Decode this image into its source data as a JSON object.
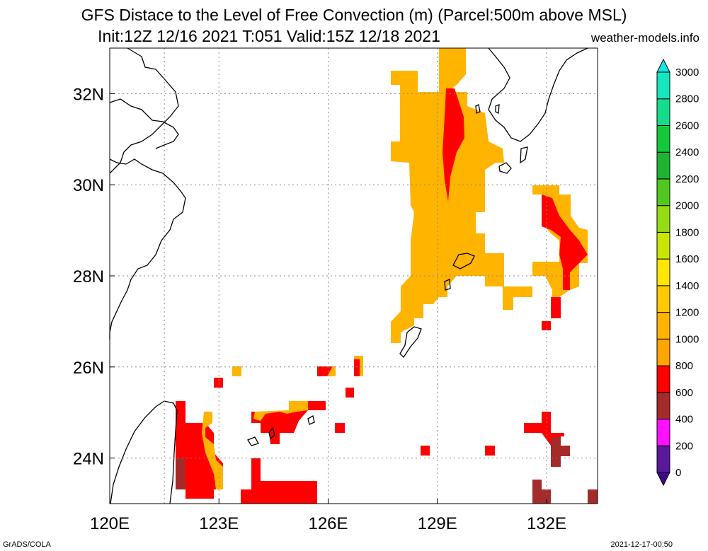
{
  "title": {
    "line1": "GFS Distace to the Level of Free Convection (m) (Parcel:500m above MSL)",
    "line2": "Init:12Z 12/16 2021 T:051 Valid:15Z 12/18 2021",
    "site": "weather-models.info"
  },
  "footer": {
    "left": "GrADS/COLA",
    "right": "2021-12-17-00:50"
  },
  "map": {
    "lon_range": [
      120,
      133.4
    ],
    "lat_range": [
      23,
      33
    ],
    "lon_ticks": [
      {
        "v": 120,
        "label": "120E"
      },
      {
        "v": 123,
        "label": "123E"
      },
      {
        "v": 126,
        "label": "126E"
      },
      {
        "v": 129,
        "label": "129E"
      },
      {
        "v": 132,
        "label": "132E"
      }
    ],
    "lat_ticks": [
      {
        "v": 24,
        "label": "24N"
      },
      {
        "v": 26,
        "label": "26N"
      },
      {
        "v": 28,
        "label": "28N"
      },
      {
        "v": 30,
        "label": "30N"
      },
      {
        "v": 32,
        "label": "32N"
      }
    ],
    "grid_lons": [
      121.5,
      123,
      126,
      129,
      132
    ],
    "grid_lats": [
      24,
      26,
      28,
      30,
      32
    ]
  },
  "colorbar": {
    "levels": [
      0,
      200,
      400,
      600,
      800,
      1000,
      1200,
      1400,
      1600,
      1800,
      2000,
      2200,
      2400,
      2600,
      2800,
      3000
    ],
    "labels": [
      "0",
      "200",
      "400",
      "600",
      "800",
      "1000",
      "1200",
      "1400",
      "1600",
      "1800",
      "2000",
      "2200",
      "2400",
      "2600",
      "2800",
      "3000"
    ],
    "colors": [
      "#5a189a",
      "#ff10ff",
      "#a52a2a",
      "#ff0000",
      "#ffa500",
      "#ffb400",
      "#ffc800",
      "#ffe600",
      "#c8e600",
      "#96dc14",
      "#50c81e",
      "#1eb432",
      "#14c83c",
      "#14dc8c",
      "#14e6be",
      "#14e6e6"
    ],
    "top_color": "#14e6e6",
    "bottom_color": "#3c0a8c"
  },
  "field_colors": {
    "c600": "#ff0000",
    "c800": "#ffa500",
    "c1000": "#ffb400",
    "c400": "#a52a2a"
  }
}
